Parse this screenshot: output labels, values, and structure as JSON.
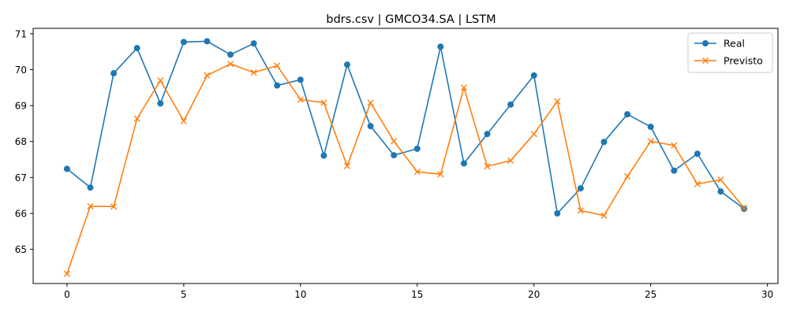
{
  "chart_data": {
    "type": "line",
    "title": "bdrs.csv | GMCO34.SA | LSTM",
    "xlabel": "",
    "ylabel": "",
    "xlim": [
      -1.45,
      30.45
    ],
    "ylim": [
      64.05,
      71.15
    ],
    "xticks": [
      0,
      5,
      10,
      15,
      20,
      25,
      30
    ],
    "yticks": [
      65,
      66,
      67,
      68,
      69,
      70,
      71
    ],
    "grid": false,
    "legend_position": "upper right",
    "x": [
      0,
      1,
      2,
      3,
      4,
      5,
      6,
      7,
      8,
      9,
      10,
      11,
      12,
      13,
      14,
      15,
      16,
      17,
      18,
      19,
      20,
      21,
      22,
      23,
      24,
      25,
      26,
      27,
      28,
      29
    ],
    "series": [
      {
        "name": "Real",
        "color": "#1f77b4",
        "marker": "circle",
        "values": [
          67.24,
          66.72,
          69.9,
          70.6,
          69.06,
          70.77,
          70.79,
          70.42,
          70.73,
          69.56,
          69.72,
          67.61,
          70.14,
          68.43,
          67.62,
          67.8,
          70.64,
          67.39,
          68.21,
          69.03,
          69.84,
          66.0,
          66.7,
          67.99,
          68.76,
          68.41,
          67.19,
          67.66,
          66.61,
          66.13
        ]
      },
      {
        "name": "Previsto",
        "color": "#ff7f0e",
        "marker": "x",
        "values": [
          64.32,
          66.2,
          66.19,
          68.64,
          69.7,
          68.57,
          69.84,
          70.16,
          69.92,
          70.11,
          69.17,
          69.08,
          67.32,
          69.08,
          68.01,
          67.16,
          67.09,
          69.5,
          67.31,
          67.47,
          68.21,
          69.12,
          66.08,
          65.94,
          67.03,
          68.01,
          67.89,
          66.82,
          66.94,
          66.15
        ]
      }
    ]
  }
}
